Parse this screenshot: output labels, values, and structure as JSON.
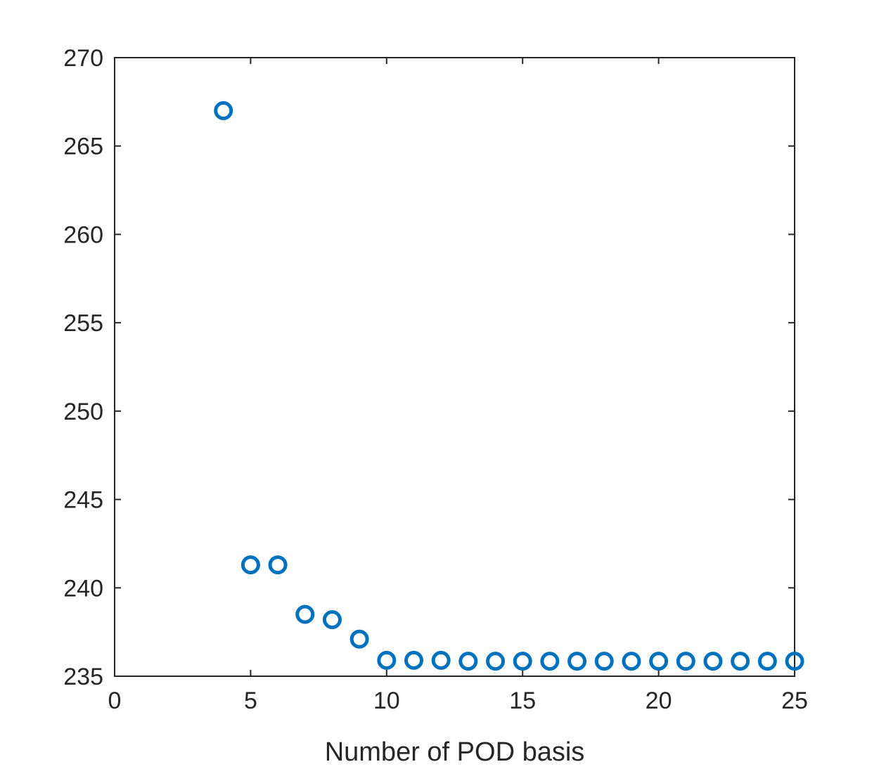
{
  "chart_data": {
    "type": "scatter",
    "title": "",
    "xlabel": "Number of POD basis",
    "ylabel": "",
    "xlim": [
      0,
      25
    ],
    "ylim": [
      235,
      270
    ],
    "xticks": [
      0,
      5,
      10,
      15,
      20,
      25
    ],
    "yticks": [
      235,
      240,
      245,
      250,
      255,
      260,
      265,
      270
    ],
    "marker": "open-circle",
    "marker_color": "#0072BD",
    "axis_color": "#262626",
    "grid": false,
    "box": true,
    "series": [
      {
        "x": [
          4,
          5,
          6,
          7,
          8,
          9,
          10,
          11,
          12,
          13,
          14,
          15,
          16,
          17,
          18,
          19,
          20,
          21,
          22,
          23,
          24,
          25
        ],
        "y": [
          267.0,
          241.3,
          241.3,
          238.5,
          238.2,
          237.1,
          235.9,
          235.9,
          235.9,
          235.85,
          235.85,
          235.85,
          235.85,
          235.85,
          235.85,
          235.85,
          235.85,
          235.85,
          235.85,
          235.85,
          235.85,
          235.85
        ]
      }
    ]
  }
}
